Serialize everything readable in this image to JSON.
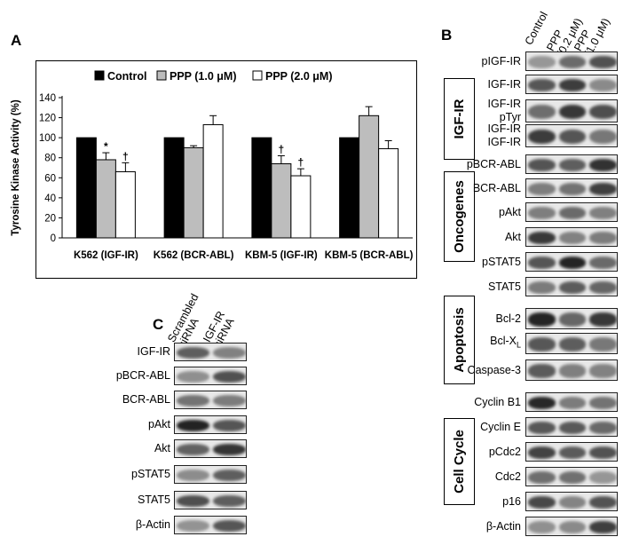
{
  "panel_a": {
    "letter": "A",
    "legend": [
      "Control",
      "PPP (1.0 μM)",
      "PPP (2.0 μM)"
    ]
  },
  "panel_b": {
    "letter": "B",
    "lanes": [
      "Control",
      "PPP\n(0.2 μM)",
      "PPP\n(1.0 μM)"
    ],
    "groups": [
      {
        "title": "IGF-IR",
        "rows": [
          "pIGF-IR",
          "IGF-IR",
          "IGF-IR\npTyr",
          "IGF-IR\nIGF-IR"
        ]
      },
      {
        "title": "Oncogenes",
        "rows": [
          "pBCR-ABL",
          "BCR-ABL",
          "pAkt",
          "Akt",
          "pSTAT5",
          "STAT5"
        ]
      },
      {
        "title": "Apoptosis",
        "rows": [
          "Bcl-2",
          "Bcl-XL",
          "Caspase-3"
        ]
      },
      {
        "title": "Cell Cycle",
        "rows": [
          "Cyclin B1",
          "Cyclin E",
          "pCdc2",
          "Cdc2",
          "p16",
          "β-Actin"
        ]
      }
    ]
  },
  "panel_c": {
    "letter": "C",
    "lanes": [
      "Scrambled\nsiRNA",
      "IGF-IR\nsiRNA"
    ],
    "rows": [
      "IGF-IR",
      "pBCR-ABL",
      "BCR-ABL",
      "pAkt",
      "Akt",
      "pSTAT5",
      "STAT5",
      "β-Actin"
    ]
  },
  "chart_data": {
    "type": "bar",
    "title": "",
    "xlabel": "",
    "ylabel": "Tyrosine Kinase Activity (%)",
    "ylim": [
      0,
      140
    ],
    "yticks": [
      0,
      20,
      40,
      60,
      80,
      100,
      120,
      140
    ],
    "categories": [
      "K562 (IGF-IR)",
      "K562 (BCR-ABL)",
      "KBM-5 (IGF-IR)",
      "KBM-5 (BCR-ABL)"
    ],
    "legend_position": "top",
    "grid": false,
    "series": [
      {
        "name": "Control",
        "color": "#000000",
        "values": [
          100,
          100,
          100,
          100
        ],
        "errors": [
          0,
          0,
          0,
          0
        ],
        "marks": [
          "",
          "",
          "",
          ""
        ]
      },
      {
        "name": "PPP (1.0 μM)",
        "color": "#bdbdbd",
        "values": [
          78,
          90,
          74,
          122
        ],
        "errors": [
          7,
          2,
          8,
          9
        ],
        "marks": [
          "*",
          "",
          "†",
          ""
        ]
      },
      {
        "name": "PPP (2.0 μM)",
        "color": "#ffffff",
        "values": [
          66,
          113,
          62,
          89
        ],
        "errors": [
          9,
          9,
          7,
          8
        ],
        "marks": [
          "†",
          "",
          "†",
          ""
        ]
      }
    ]
  }
}
